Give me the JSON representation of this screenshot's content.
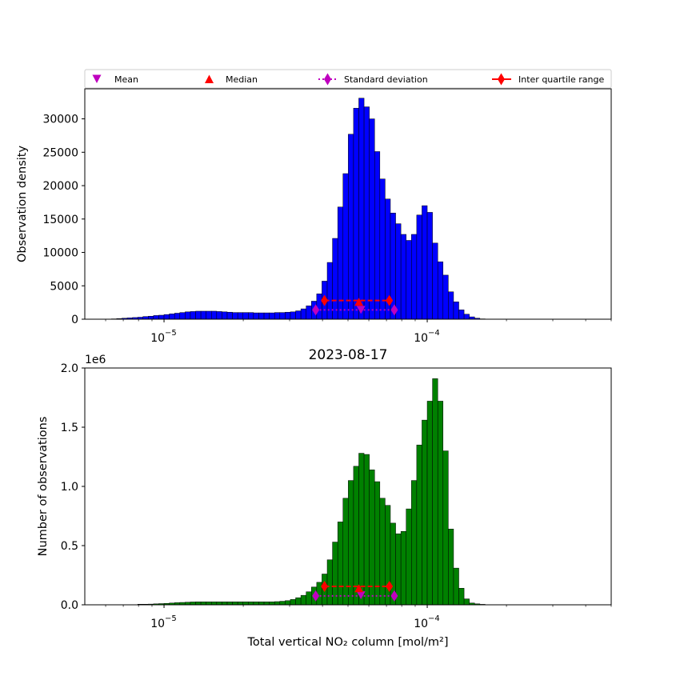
{
  "chart_data": [
    {
      "type": "bar",
      "subtype": "histogram",
      "xscale": "log",
      "xlim": [
        5e-06,
        0.0005
      ],
      "ylim": [
        0,
        34500
      ],
      "bar_color": "#0000ff",
      "ylabel": "Observation density",
      "yticks": [
        {
          "value": 0,
          "label": "0"
        },
        {
          "value": 5000,
          "label": "5000"
        },
        {
          "value": 10000,
          "label": "10000"
        },
        {
          "value": 15000,
          "label": "15000"
        },
        {
          "value": 20000,
          "label": "20000"
        },
        {
          "value": 25000,
          "label": "25000"
        },
        {
          "value": 30000,
          "label": "30000"
        }
      ],
      "xticks": [
        {
          "value": 1e-05,
          "label": "10",
          "exp": "−5"
        },
        {
          "value": 0.0001,
          "label": "10",
          "exp": "−4"
        }
      ],
      "bins": {
        "log_start": -5.3,
        "log_end": -3.3,
        "count": 100
      },
      "values": [
        0,
        0,
        0,
        0,
        0,
        50,
        100,
        150,
        200,
        250,
        300,
        400,
        450,
        550,
        600,
        700,
        800,
        900,
        1000,
        1100,
        1150,
        1200,
        1200,
        1200,
        1200,
        1150,
        1100,
        1050,
        1000,
        1000,
        1000,
        1000,
        950,
        950,
        950,
        950,
        1000,
        1000,
        1050,
        1100,
        1250,
        1550,
        2000,
        2700,
        3800,
        5700,
        8500,
        12100,
        16800,
        21800,
        27700,
        31600,
        33100,
        31800,
        30000,
        25100,
        21000,
        18000,
        15900,
        14300,
        12700,
        11800,
        12700,
        15600,
        17000,
        16000,
        11400,
        8600,
        6600,
        4100,
        2600,
        1400,
        750,
        350,
        150,
        50,
        20,
        10,
        0,
        0,
        0,
        0,
        0,
        0,
        0,
        0,
        0,
        0,
        0,
        0,
        0,
        0,
        0,
        0,
        0,
        0,
        0,
        0,
        0,
        0
      ],
      "stats": {
        "mean": {
          "x": 5.6e-05,
          "y": 1400
        },
        "median": {
          "x": 5.5e-05,
          "y": 2600
        },
        "std": {
          "x": [
            3.77e-05,
            7.5e-05
          ],
          "y": 1400
        },
        "iqr": {
          "x": [
            4.07e-05,
            7.18e-05
          ],
          "y": 2800
        }
      },
      "legend": {
        "placement": "top",
        "items": [
          {
            "label": "Mean",
            "marker": "triangle-down",
            "color": "#bf00bf"
          },
          {
            "label": "Median",
            "marker": "triangle-up",
            "color": "#ff0000"
          },
          {
            "label": "Standard deviation",
            "marker": "diamond",
            "linestyle": "dotted",
            "color": "#bf00bf"
          },
          {
            "label": "Inter quartile range",
            "marker": "diamond",
            "linestyle": "solid",
            "color": "#ff0000"
          }
        ]
      }
    },
    {
      "type": "bar",
      "subtype": "histogram",
      "title": "2023-08-17",
      "xscale": "log",
      "xlim": [
        5e-06,
        0.0005
      ],
      "ylim": [
        0,
        2000000.0
      ],
      "bar_color": "#008000",
      "ylabel": "Number of observations",
      "xlabel": "Total vertical NO₂ column [mol/m²]",
      "offset_label": "1e6",
      "yticks": [
        {
          "value": 0,
          "label": "0.0"
        },
        {
          "value": 500000,
          "label": "0.5"
        },
        {
          "value": 1000000,
          "label": "1.0"
        },
        {
          "value": 1500000,
          "label": "1.5"
        },
        {
          "value": 2000000,
          "label": "2.0"
        }
      ],
      "xticks": [
        {
          "value": 1e-05,
          "label": "10",
          "exp": "−5"
        },
        {
          "value": 0.0001,
          "label": "10",
          "exp": "−4"
        }
      ],
      "bins": {
        "log_start": -5.3,
        "log_end": -3.3,
        "count": 100
      },
      "values": [
        0,
        0,
        0,
        0,
        0,
        0,
        0,
        0,
        0,
        0,
        5000,
        5000,
        6000,
        8000,
        10000,
        12000,
        15000,
        18000,
        20000,
        22000,
        24000,
        25000,
        25000,
        25000,
        25000,
        25000,
        25000,
        25000,
        25000,
        25000,
        25000,
        25000,
        25000,
        25000,
        25000,
        25000,
        27000,
        30000,
        35000,
        45000,
        60000,
        80000,
        110000,
        150000,
        190000,
        260000,
        380000,
        530000,
        700000,
        900000,
        1050000,
        1170000,
        1280000,
        1270000,
        1140000,
        1040000,
        900000,
        840000,
        690000,
        600000,
        620000,
        810000,
        1050000,
        1350000,
        1560000,
        1720000,
        1910000,
        1720000,
        1300000,
        640000,
        310000,
        140000,
        50000,
        15000,
        8000,
        4000,
        0,
        0,
        0,
        0,
        0,
        0,
        0,
        0,
        0,
        0,
        0,
        0,
        0,
        0,
        0,
        0,
        0,
        0,
        0,
        0,
        0,
        0,
        0,
        0
      ],
      "stats": {
        "mean": {
          "x": 5.6e-05,
          "y": 80000
        },
        "median": {
          "x": 5.5e-05,
          "y": 140000
        },
        "std": {
          "x": [
            3.77e-05,
            7.5e-05
          ],
          "y": 75000
        },
        "iqr": {
          "x": [
            4.07e-05,
            7.18e-05
          ],
          "y": 155000
        }
      }
    }
  ]
}
